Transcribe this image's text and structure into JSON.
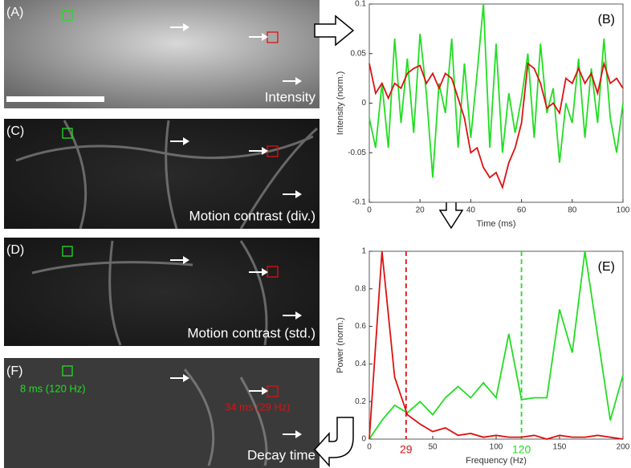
{
  "panels": [
    {
      "label": "(A)",
      "caption": "Intensity"
    },
    {
      "label": "(C)",
      "caption": "Motion contrast (div.)"
    },
    {
      "label": "(D)",
      "caption": "Motion contrast (std.)"
    },
    {
      "label": "(F)",
      "caption": "Decay time"
    }
  ],
  "panel_f_annotations": [
    "8 ms (120 Hz)",
    "34 ms (29 Hz)"
  ],
  "chart_data": [
    {
      "type": "line",
      "label": "(B)",
      "xlabel": "Time (ms)",
      "ylabel": "Intensity (norm.)",
      "xlim": [
        0,
        100
      ],
      "ylim": [
        -0.1,
        0.1
      ],
      "xticks": [
        0,
        20,
        40,
        60,
        80,
        100
      ],
      "yticks": [
        -0.1,
        -0.05,
        0,
        0.05,
        0.1
      ],
      "x": [
        0,
        2.5,
        5,
        7.5,
        10,
        12.5,
        15,
        17.5,
        20,
        22.5,
        25,
        27.5,
        30,
        32.5,
        35,
        37.5,
        40,
        42.5,
        45,
        47.5,
        50,
        52.5,
        55,
        57.5,
        60,
        62.5,
        65,
        67.5,
        70,
        72.5,
        75,
        77.5,
        80,
        82.5,
        85,
        87.5,
        90,
        92.5,
        95,
        97.5,
        100
      ],
      "series": [
        {
          "color": "#22dd22",
          "values": [
            -0.015,
            -0.045,
            0.02,
            -0.045,
            0.065,
            -0.02,
            0.045,
            -0.03,
            0.07,
            0.01,
            -0.075,
            0.02,
            -0.01,
            0.065,
            -0.045,
            0.04,
            -0.035,
            0.03,
            0.1,
            -0.045,
            0.06,
            -0.05,
            0.01,
            -0.03,
            0.005,
            0.05,
            -0.035,
            0.06,
            -0.01,
            0.015,
            -0.06,
            0,
            -0.02,
            0.045,
            -0.035,
            0.035,
            -0.02,
            0.065,
            -0.015,
            -0.05,
            0
          ]
        },
        {
          "color": "#dd1111",
          "values": [
            0.04,
            0.01,
            0.02,
            0.005,
            0.02,
            0.015,
            0.03,
            0.035,
            0.038,
            0.02,
            0.03,
            0.015,
            0.03,
            0.025,
            0.005,
            -0.015,
            -0.05,
            -0.045,
            -0.065,
            -0.075,
            -0.07,
            -0.085,
            -0.06,
            -0.045,
            -0.02,
            0.04,
            0.035,
            0.02,
            -0.005,
            0,
            -0.01,
            0.025,
            0.02,
            0.035,
            0.02,
            0.03,
            0.01,
            0.04,
            0.02,
            0.025,
            0.015
          ]
        }
      ]
    },
    {
      "type": "line",
      "label": "(E)",
      "xlabel": "Frequency (Hz)",
      "ylabel": "Power (norm.)",
      "xlim": [
        0,
        200
      ],
      "ylim": [
        0,
        1
      ],
      "xticks": [
        0,
        50,
        100,
        150,
        200
      ],
      "yticks": [
        0,
        0.2,
        0.4,
        0.6,
        0.8,
        1
      ],
      "vlines": [
        {
          "x": 29,
          "color": "#dd1111"
        },
        {
          "x": 120,
          "color": "#22dd22"
        }
      ],
      "x": [
        0,
        10,
        20,
        30,
        40,
        50,
        60,
        70,
        80,
        90,
        100,
        110,
        120,
        130,
        140,
        150,
        160,
        170,
        180,
        190,
        200
      ],
      "series": [
        {
          "color": "#22dd22",
          "values": [
            0,
            0.1,
            0.18,
            0.14,
            0.2,
            0.13,
            0.22,
            0.28,
            0.22,
            0.3,
            0.22,
            0.56,
            0.21,
            0.22,
            0.22,
            0.69,
            0.46,
            1,
            0.55,
            0.1,
            0.34
          ]
        },
        {
          "color": "#dd1111",
          "values": [
            0,
            1,
            0.33,
            0.13,
            0.08,
            0.04,
            0.06,
            0.02,
            0.03,
            0.01,
            0.02,
            0.01,
            0.01,
            0.02,
            0,
            0.02,
            0.01,
            0.01,
            0.02,
            0.01,
            0
          ]
        }
      ]
    }
  ]
}
